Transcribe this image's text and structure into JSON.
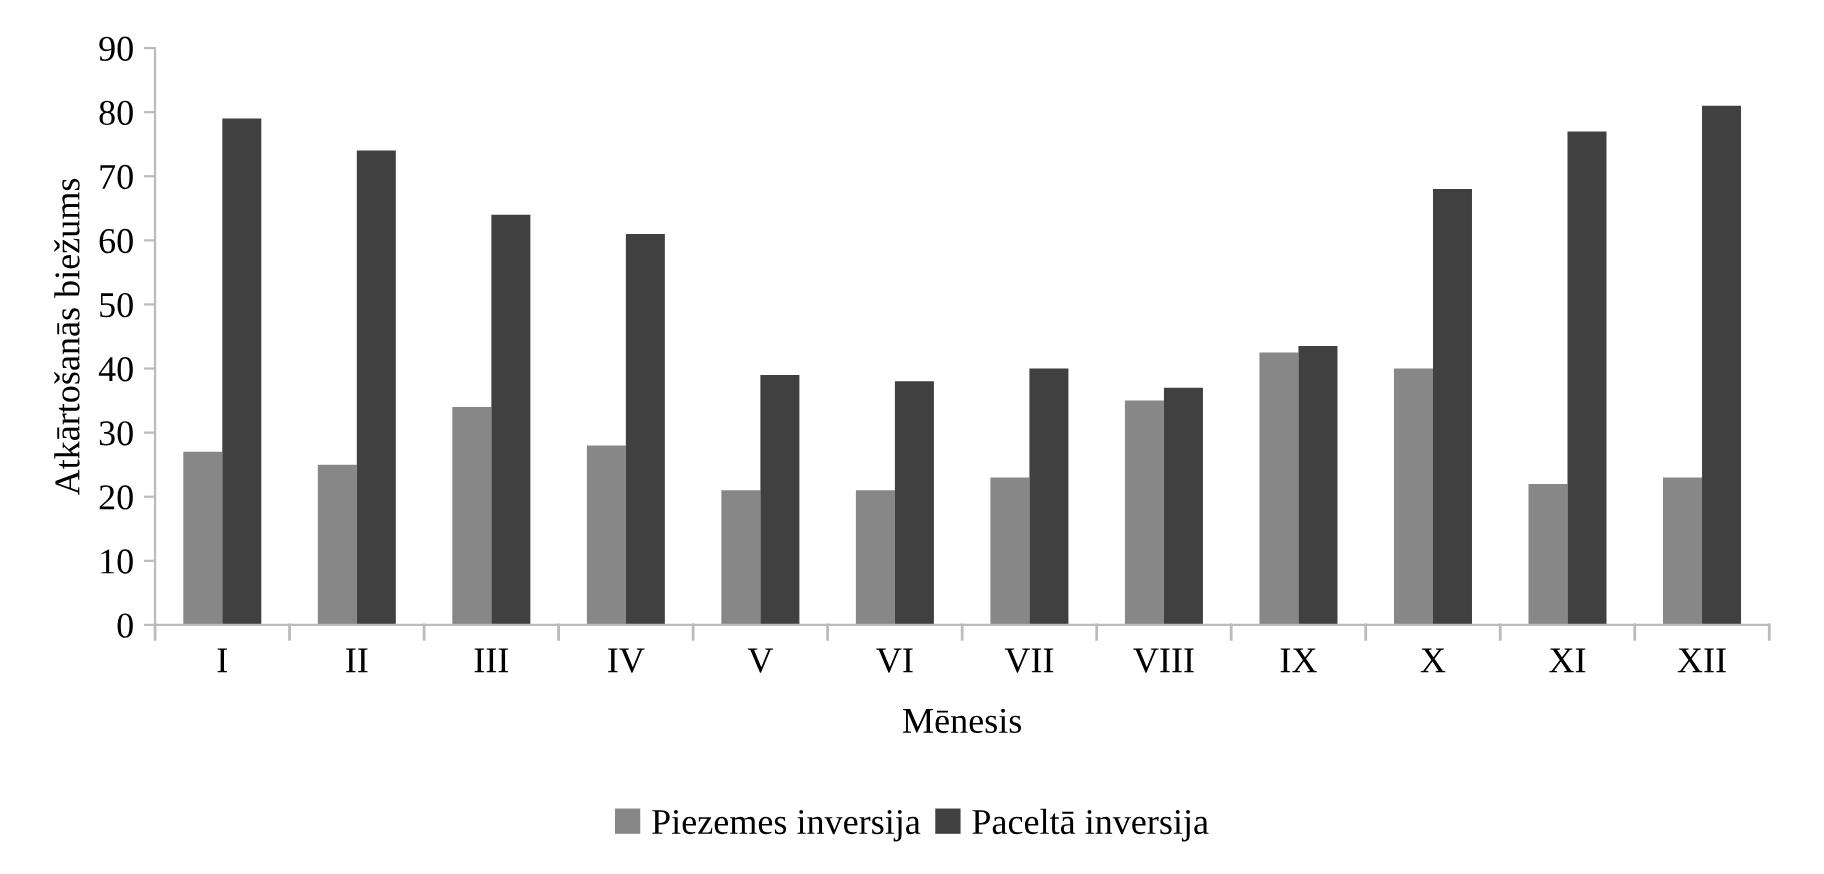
{
  "chart_data": {
    "type": "bar",
    "xlabel": "Mēnesis",
    "ylabel": "Atkārtošanās biežums",
    "categories": [
      "I",
      "II",
      "III",
      "IV",
      "V",
      "VI",
      "VII",
      "VIII",
      "IX",
      "X",
      "XI",
      "XII"
    ],
    "series": [
      {
        "name": "Piezemes inversija",
        "color": "#878787",
        "values": [
          27,
          25,
          34,
          28,
          21,
          21,
          23,
          35,
          42.5,
          40,
          22,
          23
        ]
      },
      {
        "name": "Paceltā inversija",
        "color": "#404040",
        "values": [
          79,
          74,
          64,
          61,
          39,
          38,
          40,
          37,
          43.5,
          68,
          77,
          81
        ]
      }
    ],
    "ylim": [
      0,
      90
    ],
    "yticks": [
      0,
      10,
      20,
      30,
      40,
      50,
      60,
      70,
      80,
      90
    ],
    "grid": false,
    "legend": "bottom"
  }
}
